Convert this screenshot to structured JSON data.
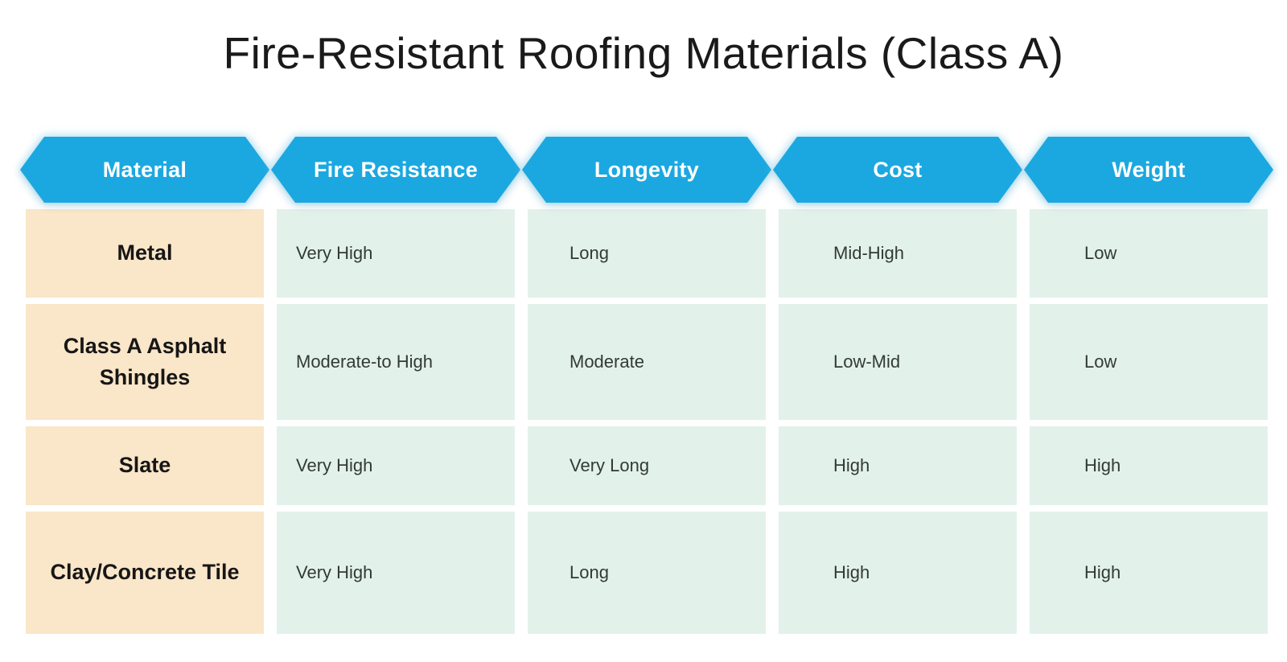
{
  "title": "Fire-Resistant Roofing Materials (Class A)",
  "colors": {
    "page_bg": "#ffffff",
    "header_blue": "#1ba8e0",
    "header_text": "#ffffff",
    "material_bg": "#fae6c8",
    "material_text": "#161616",
    "value_bg": "#e3f1eb",
    "value_text": "#323a36",
    "title_text": "#1a1a1a"
  },
  "chart_data": {
    "type": "table",
    "title": "Fire-Resistant Roofing Materials (Class A)",
    "columns": [
      "Material",
      "Fire Resistance",
      "Longevity",
      "Cost",
      "Weight"
    ],
    "rows": [
      [
        "Metal",
        "Very High",
        "Long",
        "Mid-High",
        "Low"
      ],
      [
        "Class A Asphalt Shingles",
        "Moderate-to High",
        "Moderate",
        "Low-Mid",
        "Low"
      ],
      [
        "Slate",
        "Very High",
        "Very Long",
        "High",
        "High"
      ],
      [
        "Clay/Concrete Tile",
        "Very High",
        "Long",
        "High",
        "High"
      ]
    ]
  }
}
